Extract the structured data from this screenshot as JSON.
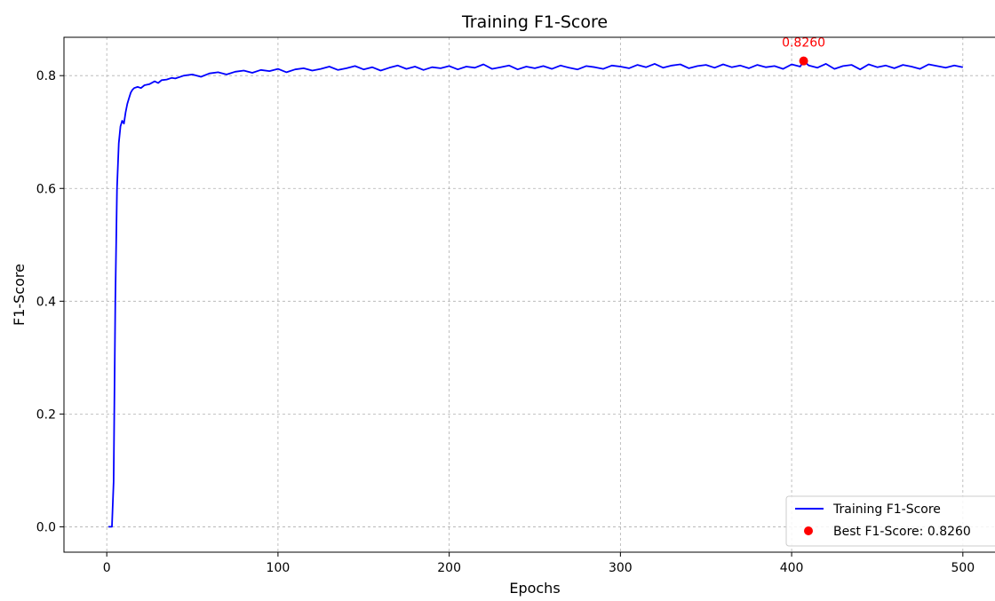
{
  "chart_data": {
    "type": "line",
    "title": "Training F1-Score",
    "xlabel": "Epochs",
    "ylabel": "F1-Score",
    "xlim": [
      -25,
      525
    ],
    "ylim": [
      -0.045,
      0.868
    ],
    "grid": true,
    "legend_position": "bottom-right",
    "x_ticks": [
      0,
      100,
      200,
      300,
      400,
      500
    ],
    "y_ticks": [
      0.0,
      0.2,
      0.4,
      0.6,
      0.8
    ],
    "series": [
      {
        "name": "Training F1-Score",
        "color": "#0000ff",
        "x": [
          1,
          2,
          3,
          4,
          5,
          6,
          7,
          8,
          9,
          10,
          11,
          12,
          13,
          14,
          15,
          16,
          18,
          20,
          22,
          25,
          28,
          30,
          32,
          35,
          38,
          40,
          45,
          50,
          55,
          60,
          65,
          70,
          75,
          80,
          85,
          90,
          95,
          100,
          105,
          110,
          115,
          120,
          125,
          130,
          135,
          140,
          145,
          150,
          155,
          160,
          165,
          170,
          175,
          180,
          185,
          190,
          195,
          200,
          205,
          210,
          215,
          220,
          225,
          230,
          235,
          240,
          245,
          250,
          255,
          260,
          265,
          270,
          275,
          280,
          285,
          290,
          295,
          300,
          305,
          310,
          315,
          320,
          325,
          330,
          335,
          340,
          345,
          350,
          355,
          360,
          365,
          370,
          375,
          380,
          385,
          390,
          395,
          400,
          405,
          407,
          410,
          415,
          420,
          425,
          430,
          435,
          440,
          445,
          450,
          455,
          460,
          465,
          470,
          475,
          480,
          485,
          490,
          495,
          500
        ],
        "values": [
          0.0,
          0.0,
          0.0,
          0.08,
          0.4,
          0.6,
          0.68,
          0.71,
          0.72,
          0.715,
          0.735,
          0.75,
          0.76,
          0.77,
          0.775,
          0.778,
          0.78,
          0.778,
          0.783,
          0.785,
          0.79,
          0.787,
          0.792,
          0.793,
          0.796,
          0.795,
          0.8,
          0.802,
          0.798,
          0.804,
          0.806,
          0.802,
          0.807,
          0.809,
          0.805,
          0.81,
          0.808,
          0.812,
          0.806,
          0.811,
          0.813,
          0.809,
          0.812,
          0.816,
          0.81,
          0.813,
          0.817,
          0.811,
          0.815,
          0.809,
          0.814,
          0.818,
          0.812,
          0.816,
          0.81,
          0.815,
          0.813,
          0.817,
          0.811,
          0.816,
          0.814,
          0.82,
          0.812,
          0.815,
          0.818,
          0.811,
          0.816,
          0.813,
          0.817,
          0.812,
          0.818,
          0.814,
          0.811,
          0.817,
          0.815,
          0.812,
          0.818,
          0.816,
          0.813,
          0.819,
          0.815,
          0.821,
          0.814,
          0.818,
          0.82,
          0.813,
          0.817,
          0.819,
          0.814,
          0.82,
          0.815,
          0.818,
          0.813,
          0.819,
          0.815,
          0.817,
          0.812,
          0.82,
          0.816,
          0.826,
          0.818,
          0.814,
          0.821,
          0.812,
          0.817,
          0.819,
          0.811,
          0.82,
          0.815,
          0.818,
          0.813,
          0.819,
          0.816,
          0.812,
          0.82,
          0.817,
          0.814,
          0.818,
          0.815
        ]
      },
      {
        "name": "Best F1-Score: 0.8260",
        "type": "scatter",
        "color": "#ff0000",
        "x": [
          407
        ],
        "values": [
          0.826
        ]
      }
    ],
    "annotations": [
      {
        "text": "0.8260",
        "x": 407,
        "y": 0.826,
        "color": "#ff0000"
      }
    ]
  }
}
